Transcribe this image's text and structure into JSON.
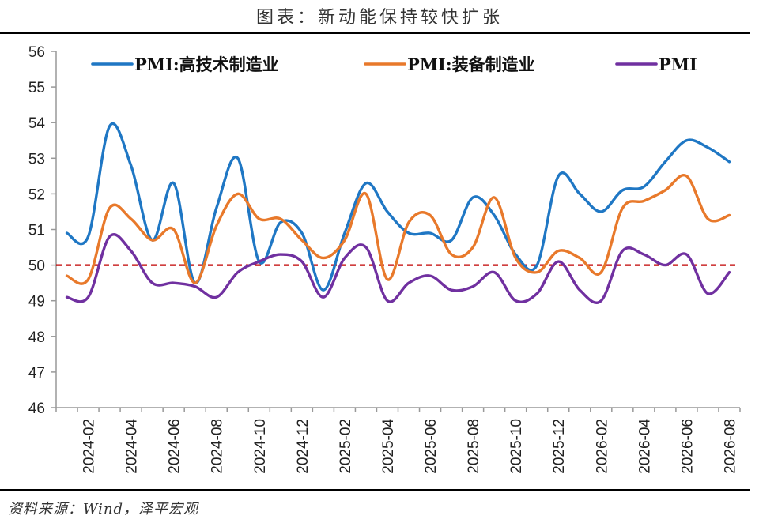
{
  "header": {
    "title": "图表：新动能保持较快扩张"
  },
  "footer": {
    "source": "资料来源：Wind，泽平宏观"
  },
  "chart_data": {
    "type": "line",
    "title": "图表：新动能保持较快扩张",
    "xlabel": "",
    "ylabel": "",
    "ylim": [
      46,
      56
    ],
    "yticks": [
      46,
      47,
      48,
      49,
      50,
      51,
      52,
      53,
      54,
      55,
      56
    ],
    "x_tick_labels": [
      "2024-02",
      "2024-04",
      "2024-06",
      "2024-08",
      "2024-10",
      "2024-12",
      "2025-02",
      "2025-04",
      "2025-06",
      "2025-08",
      "2025-10",
      "2025-12",
      "2026-02",
      "2026-04",
      "2026-06",
      "2026-08"
    ],
    "months": [
      "2024-01",
      "2024-02",
      "2024-03",
      "2024-04",
      "2024-05",
      "2024-06",
      "2024-07",
      "2024-08",
      "2024-09",
      "2024-10",
      "2024-11",
      "2024-12",
      "2025-01",
      "2025-02",
      "2025-03",
      "2025-04",
      "2025-05",
      "2025-06",
      "2025-07",
      "2025-08",
      "2025-09",
      "2025-10",
      "2025-11",
      "2025-12",
      "2026-01",
      "2026-02",
      "2026-03",
      "2026-04",
      "2026-05",
      "2026-06",
      "2026-07",
      "2026-08"
    ],
    "grid": false,
    "legend_position": "top",
    "reference_line": {
      "y": 50,
      "style": "dashed",
      "color": "#C00000"
    },
    "series": [
      {
        "name": "PMI:高技术制造业",
        "color": "#1F77C4",
        "values": [
          50.9,
          50.8,
          53.9,
          52.8,
          50.7,
          52.3,
          49.5,
          51.6,
          53.0,
          50.1,
          51.2,
          50.9,
          49.3,
          50.9,
          52.3,
          51.5,
          50.9,
          50.9,
          50.7,
          51.9,
          51.4,
          50.3,
          50.0,
          52.5,
          52.0,
          51.5,
          52.1,
          52.2,
          52.9,
          53.5,
          53.3,
          52.9
        ]
      },
      {
        "name": "PMI:装备制造业",
        "color": "#E8792B",
        "values": [
          49.7,
          49.6,
          51.6,
          51.3,
          50.7,
          51.0,
          49.5,
          51.1,
          52.0,
          51.3,
          51.3,
          50.7,
          50.2,
          50.7,
          52.0,
          49.6,
          51.2,
          51.4,
          50.3,
          50.5,
          51.9,
          50.2,
          49.8,
          50.4,
          50.2,
          49.8,
          51.6,
          51.8,
          52.1,
          52.5,
          51.3,
          51.4
        ]
      },
      {
        "name": "PMI",
        "color": "#7030A0",
        "values": [
          49.1,
          49.1,
          50.8,
          50.4,
          49.5,
          49.5,
          49.4,
          49.1,
          49.8,
          50.1,
          50.3,
          50.1,
          49.1,
          50.2,
          50.5,
          49.0,
          49.5,
          49.7,
          49.3,
          49.4,
          49.8,
          49.0,
          49.2,
          50.1,
          49.3,
          49.0,
          50.4,
          50.3,
          50.0,
          50.3,
          49.2,
          49.8
        ]
      }
    ]
  }
}
